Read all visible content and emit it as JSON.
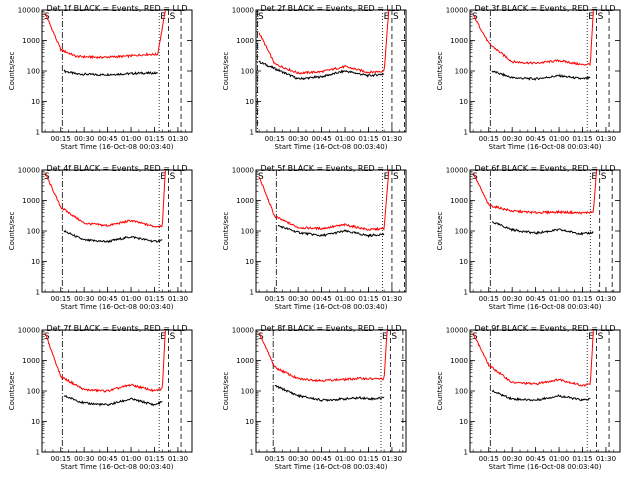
{
  "colors": {
    "background": "#ffffff",
    "events": "#000000",
    "lld": "#ff0000"
  },
  "common": {
    "xlabel": "Start Time (16-Oct-08 00:03:40)",
    "ylabel": "Counts/sec",
    "x_ticks": [
      "00:15",
      "00:30",
      "00:45",
      "01:00",
      "01:15",
      "01:30"
    ],
    "y_ticks": [
      "1",
      "10",
      "100",
      "1000",
      "10000"
    ],
    "marker_left": "S",
    "marker_right": "E",
    "marker_right2": "S"
  },
  "chart_data": [
    {
      "type": "line",
      "title": "Det 1f BLACK = Events, RED = LLD",
      "ylim": [
        1,
        10000
      ],
      "y_scale": "log",
      "x_ticks": [
        "00:15",
        "00:30",
        "00:45",
        "01:00",
        "01:15",
        "01:30"
      ],
      "series": [
        {
          "name": "Events",
          "color": "#000000",
          "x": [
            "00:17",
            "00:25",
            "00:40",
            "00:55",
            "01:05",
            "01:17"
          ],
          "values": [
            100,
            80,
            75,
            80,
            85,
            85
          ]
        },
        {
          "name": "LLD",
          "color": "#ff0000",
          "x": [
            "00:05",
            "00:15",
            "00:25",
            "00:40",
            "00:55",
            "01:10",
            "01:17",
            "01:22"
          ],
          "values": [
            8000,
            500,
            300,
            280,
            300,
            350,
            350,
            10000
          ]
        }
      ]
    },
    {
      "type": "line",
      "title": "Det 2f BLACK = Events, RED = LLD",
      "ylim": [
        1,
        10000
      ],
      "y_scale": "log",
      "x_ticks": [
        "00:15",
        "00:30",
        "00:45",
        "01:00",
        "01:15",
        "01:30"
      ],
      "series": [
        {
          "name": "Events",
          "color": "#000000",
          "x": [
            "00:05",
            "00:15",
            "00:30",
            "00:45",
            "01:00",
            "01:15",
            "01:25"
          ],
          "values": [
            200,
            120,
            55,
            65,
            100,
            70,
            80
          ]
        },
        {
          "name": "LLD",
          "color": "#ff0000",
          "x": [
            "00:05",
            "00:15",
            "00:30",
            "00:45",
            "01:00",
            "01:15",
            "01:25",
            "01:28"
          ],
          "values": [
            1800,
            170,
            85,
            95,
            140,
            90,
            100,
            10000
          ]
        }
      ]
    },
    {
      "type": "line",
      "title": "Det 3f BLACK = Events, RED = LLD",
      "ylim": [
        1,
        10000
      ],
      "y_scale": "log",
      "x_ticks": [
        "00:15",
        "00:30",
        "00:45",
        "01:00",
        "01:15",
        "01:30"
      ],
      "series": [
        {
          "name": "Events",
          "color": "#000000",
          "x": [
            "00:17",
            "00:30",
            "00:45",
            "01:00",
            "01:15",
            "01:20"
          ],
          "values": [
            100,
            60,
            55,
            70,
            55,
            60
          ]
        },
        {
          "name": "LLD",
          "color": "#ff0000",
          "x": [
            "00:05",
            "00:15",
            "00:30",
            "00:45",
            "01:00",
            "01:15",
            "01:20",
            "01:22"
          ],
          "values": [
            7000,
            800,
            200,
            180,
            220,
            160,
            170,
            10000
          ]
        }
      ]
    },
    {
      "type": "line",
      "title": "Det 4f BLACK = Events, RED = LLD",
      "ylim": [
        1,
        10000
      ],
      "y_scale": "log",
      "x_ticks": [
        "00:15",
        "00:30",
        "00:45",
        "01:00",
        "01:15",
        "01:30"
      ],
      "series": [
        {
          "name": "Events",
          "color": "#000000",
          "x": [
            "00:17",
            "00:30",
            "00:45",
            "01:00",
            "01:15",
            "01:20"
          ],
          "values": [
            100,
            50,
            45,
            65,
            45,
            50
          ]
        },
        {
          "name": "LLD",
          "color": "#ff0000",
          "x": [
            "00:05",
            "00:15",
            "00:30",
            "00:45",
            "01:00",
            "01:15",
            "01:20",
            "01:22"
          ],
          "values": [
            8000,
            600,
            180,
            150,
            220,
            140,
            150,
            10000
          ]
        }
      ]
    },
    {
      "type": "line",
      "title": "Det 5f BLACK = Events, RED = LLD",
      "ylim": [
        1,
        10000
      ],
      "y_scale": "log",
      "x_ticks": [
        "00:15",
        "00:30",
        "00:45",
        "01:00",
        "01:15",
        "01:30"
      ],
      "series": [
        {
          "name": "Events",
          "color": "#000000",
          "x": [
            "00:17",
            "00:30",
            "00:45",
            "01:00",
            "01:15",
            "01:25"
          ],
          "values": [
            150,
            90,
            70,
            100,
            70,
            80
          ]
        },
        {
          "name": "LLD",
          "color": "#ff0000",
          "x": [
            "00:05",
            "00:15",
            "00:30",
            "00:45",
            "01:00",
            "01:15",
            "01:25",
            "01:28"
          ],
          "values": [
            6000,
            300,
            130,
            120,
            160,
            110,
            120,
            10000
          ]
        }
      ]
    },
    {
      "type": "line",
      "title": "Det 6f BLACK = Events, RED = LLD",
      "ylim": [
        1,
        10000
      ],
      "y_scale": "log",
      "x_ticks": [
        "00:15",
        "00:30",
        "00:45",
        "01:00",
        "01:15",
        "01:30"
      ],
      "series": [
        {
          "name": "Events",
          "color": "#000000",
          "x": [
            "00:17",
            "00:30",
            "00:45",
            "01:00",
            "01:15",
            "01:22"
          ],
          "values": [
            200,
            110,
            85,
            110,
            80,
            90
          ]
        },
        {
          "name": "LLD",
          "color": "#ff0000",
          "x": [
            "00:05",
            "00:15",
            "00:30",
            "00:45",
            "01:00",
            "01:15",
            "01:22",
            "01:24"
          ],
          "values": [
            8000,
            700,
            450,
            400,
            420,
            390,
            420,
            10000
          ]
        }
      ]
    },
    {
      "type": "line",
      "title": "Det 7f BLACK = Events, RED = LLD",
      "ylim": [
        1,
        10000
      ],
      "y_scale": "log",
      "x_ticks": [
        "00:15",
        "00:30",
        "00:45",
        "01:00",
        "01:15",
        "01:30"
      ],
      "series": [
        {
          "name": "Events",
          "color": "#000000",
          "x": [
            "00:17",
            "00:30",
            "00:45",
            "01:00",
            "01:15",
            "01:20"
          ],
          "values": [
            70,
            40,
            35,
            55,
            35,
            45
          ]
        },
        {
          "name": "LLD",
          "color": "#ff0000",
          "x": [
            "00:05",
            "00:15",
            "00:30",
            "00:45",
            "01:00",
            "01:15",
            "01:20",
            "01:22"
          ],
          "values": [
            8000,
            300,
            110,
            100,
            160,
            100,
            120,
            10000
          ]
        }
      ]
    },
    {
      "type": "line",
      "title": "Det 8f BLACK = Events, RED = LLD",
      "ylim": [
        1,
        10000
      ],
      "y_scale": "log",
      "x_ticks": [
        "00:15",
        "00:30",
        "00:45",
        "01:00",
        "01:15",
        "01:30"
      ],
      "series": [
        {
          "name": "Events",
          "color": "#000000",
          "x": [
            "00:15",
            "00:30",
            "00:45",
            "01:00",
            "01:10",
            "01:17",
            "01:25"
          ],
          "values": [
            150,
            70,
            50,
            55,
            60,
            55,
            60
          ]
        },
        {
          "name": "LLD",
          "color": "#ff0000",
          "x": [
            "00:05",
            "00:15",
            "00:30",
            "00:45",
            "01:00",
            "01:10",
            "01:17",
            "01:25",
            "01:27"
          ],
          "values": [
            8000,
            600,
            250,
            220,
            240,
            260,
            250,
            250,
            10000
          ]
        }
      ]
    },
    {
      "type": "line",
      "title": "Det 9f BLACK = Events, RED = LLD",
      "ylim": [
        1,
        10000
      ],
      "y_scale": "log",
      "x_ticks": [
        "00:15",
        "00:30",
        "00:45",
        "01:00",
        "01:15",
        "01:30"
      ],
      "series": [
        {
          "name": "Events",
          "color": "#000000",
          "x": [
            "00:17",
            "00:30",
            "00:45",
            "01:00",
            "01:15",
            "01:20"
          ],
          "values": [
            100,
            55,
            50,
            70,
            50,
            55
          ]
        },
        {
          "name": "LLD",
          "color": "#ff0000",
          "x": [
            "00:05",
            "00:15",
            "00:30",
            "00:45",
            "01:00",
            "01:15",
            "01:20",
            "01:22"
          ],
          "values": [
            8000,
            700,
            190,
            170,
            240,
            150,
            170,
            10000
          ]
        }
      ]
    }
  ]
}
